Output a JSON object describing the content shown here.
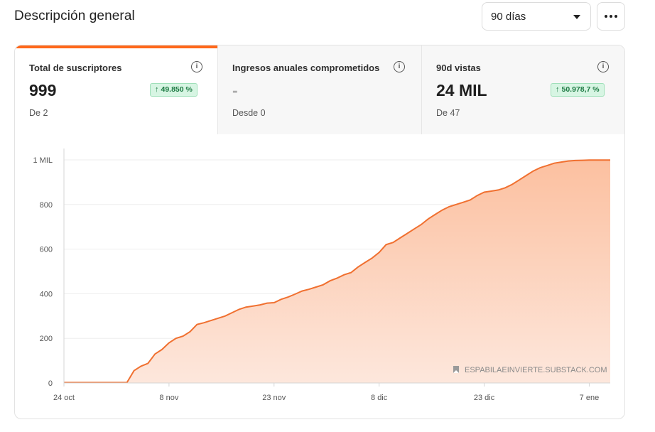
{
  "header": {
    "title": "Descripción general",
    "range_value": "90 días"
  },
  "stats": [
    {
      "label": "Total de suscriptores",
      "value": "999",
      "sub": "De 2",
      "delta": "49.850 %",
      "active": true
    },
    {
      "label": "Ingresos anuales comprometidos",
      "value": "-",
      "sub": "Desde 0",
      "delta": "",
      "active": false
    },
    {
      "label": "90d vistas",
      "value": "24 MIL",
      "sub": "De 47",
      "delta": "50.978,7 %",
      "active": false
    }
  ],
  "watermark": "ESPABILAEINVIERTE.SUBSTACK.COM",
  "colors": {
    "accent": "#ff6719",
    "line": "#f07030",
    "positive_bg": "#d7f5e3",
    "positive_text": "#1d7a43"
  },
  "chart_data": {
    "type": "area",
    "title": "",
    "xlabel": "",
    "ylabel": "",
    "ylim": [
      0,
      1000
    ],
    "y_ticks": [
      0,
      200,
      400,
      600,
      800,
      1000
    ],
    "y_tick_labels": [
      "0",
      "200",
      "400",
      "600",
      "800",
      "1 MIL"
    ],
    "x_tick_labels": [
      "24 oct",
      "8 nov",
      "23 nov",
      "8 dic",
      "23 dic",
      "7 ene"
    ],
    "x_tick_days": [
      0,
      15,
      30,
      45,
      60,
      75
    ],
    "x_range_days": [
      0,
      78
    ],
    "x_days": [
      0,
      5,
      9,
      10,
      11,
      12,
      13,
      14,
      15,
      16,
      17,
      18,
      19,
      20,
      21,
      22,
      23,
      24,
      25,
      26,
      27,
      28,
      29,
      30,
      31,
      32,
      33,
      34,
      35,
      36,
      37,
      38,
      39,
      40,
      41,
      42,
      43,
      44,
      45,
      46,
      47,
      48,
      49,
      50,
      51,
      52,
      53,
      54,
      55,
      56,
      57,
      58,
      59,
      60,
      61,
      62,
      63,
      64,
      65,
      66,
      67,
      68,
      69,
      70,
      71,
      72,
      73,
      74,
      75,
      76,
      77,
      78
    ],
    "series": [
      {
        "values": [
          2,
          2,
          2,
          55,
          75,
          88,
          130,
          150,
          180,
          200,
          210,
          230,
          262,
          270,
          280,
          290,
          300,
          315,
          330,
          340,
          345,
          350,
          358,
          360,
          375,
          385,
          398,
          412,
          420,
          430,
          440,
          458,
          470,
          485,
          495,
          520,
          540,
          560,
          585,
          620,
          630,
          650,
          670,
          690,
          710,
          735,
          755,
          775,
          790,
          800,
          810,
          820,
          840,
          855,
          860,
          865,
          875,
          890,
          910,
          930,
          950,
          965,
          975,
          985,
          990,
          995,
          997,
          998,
          999,
          999,
          999,
          999
        ]
      }
    ]
  }
}
